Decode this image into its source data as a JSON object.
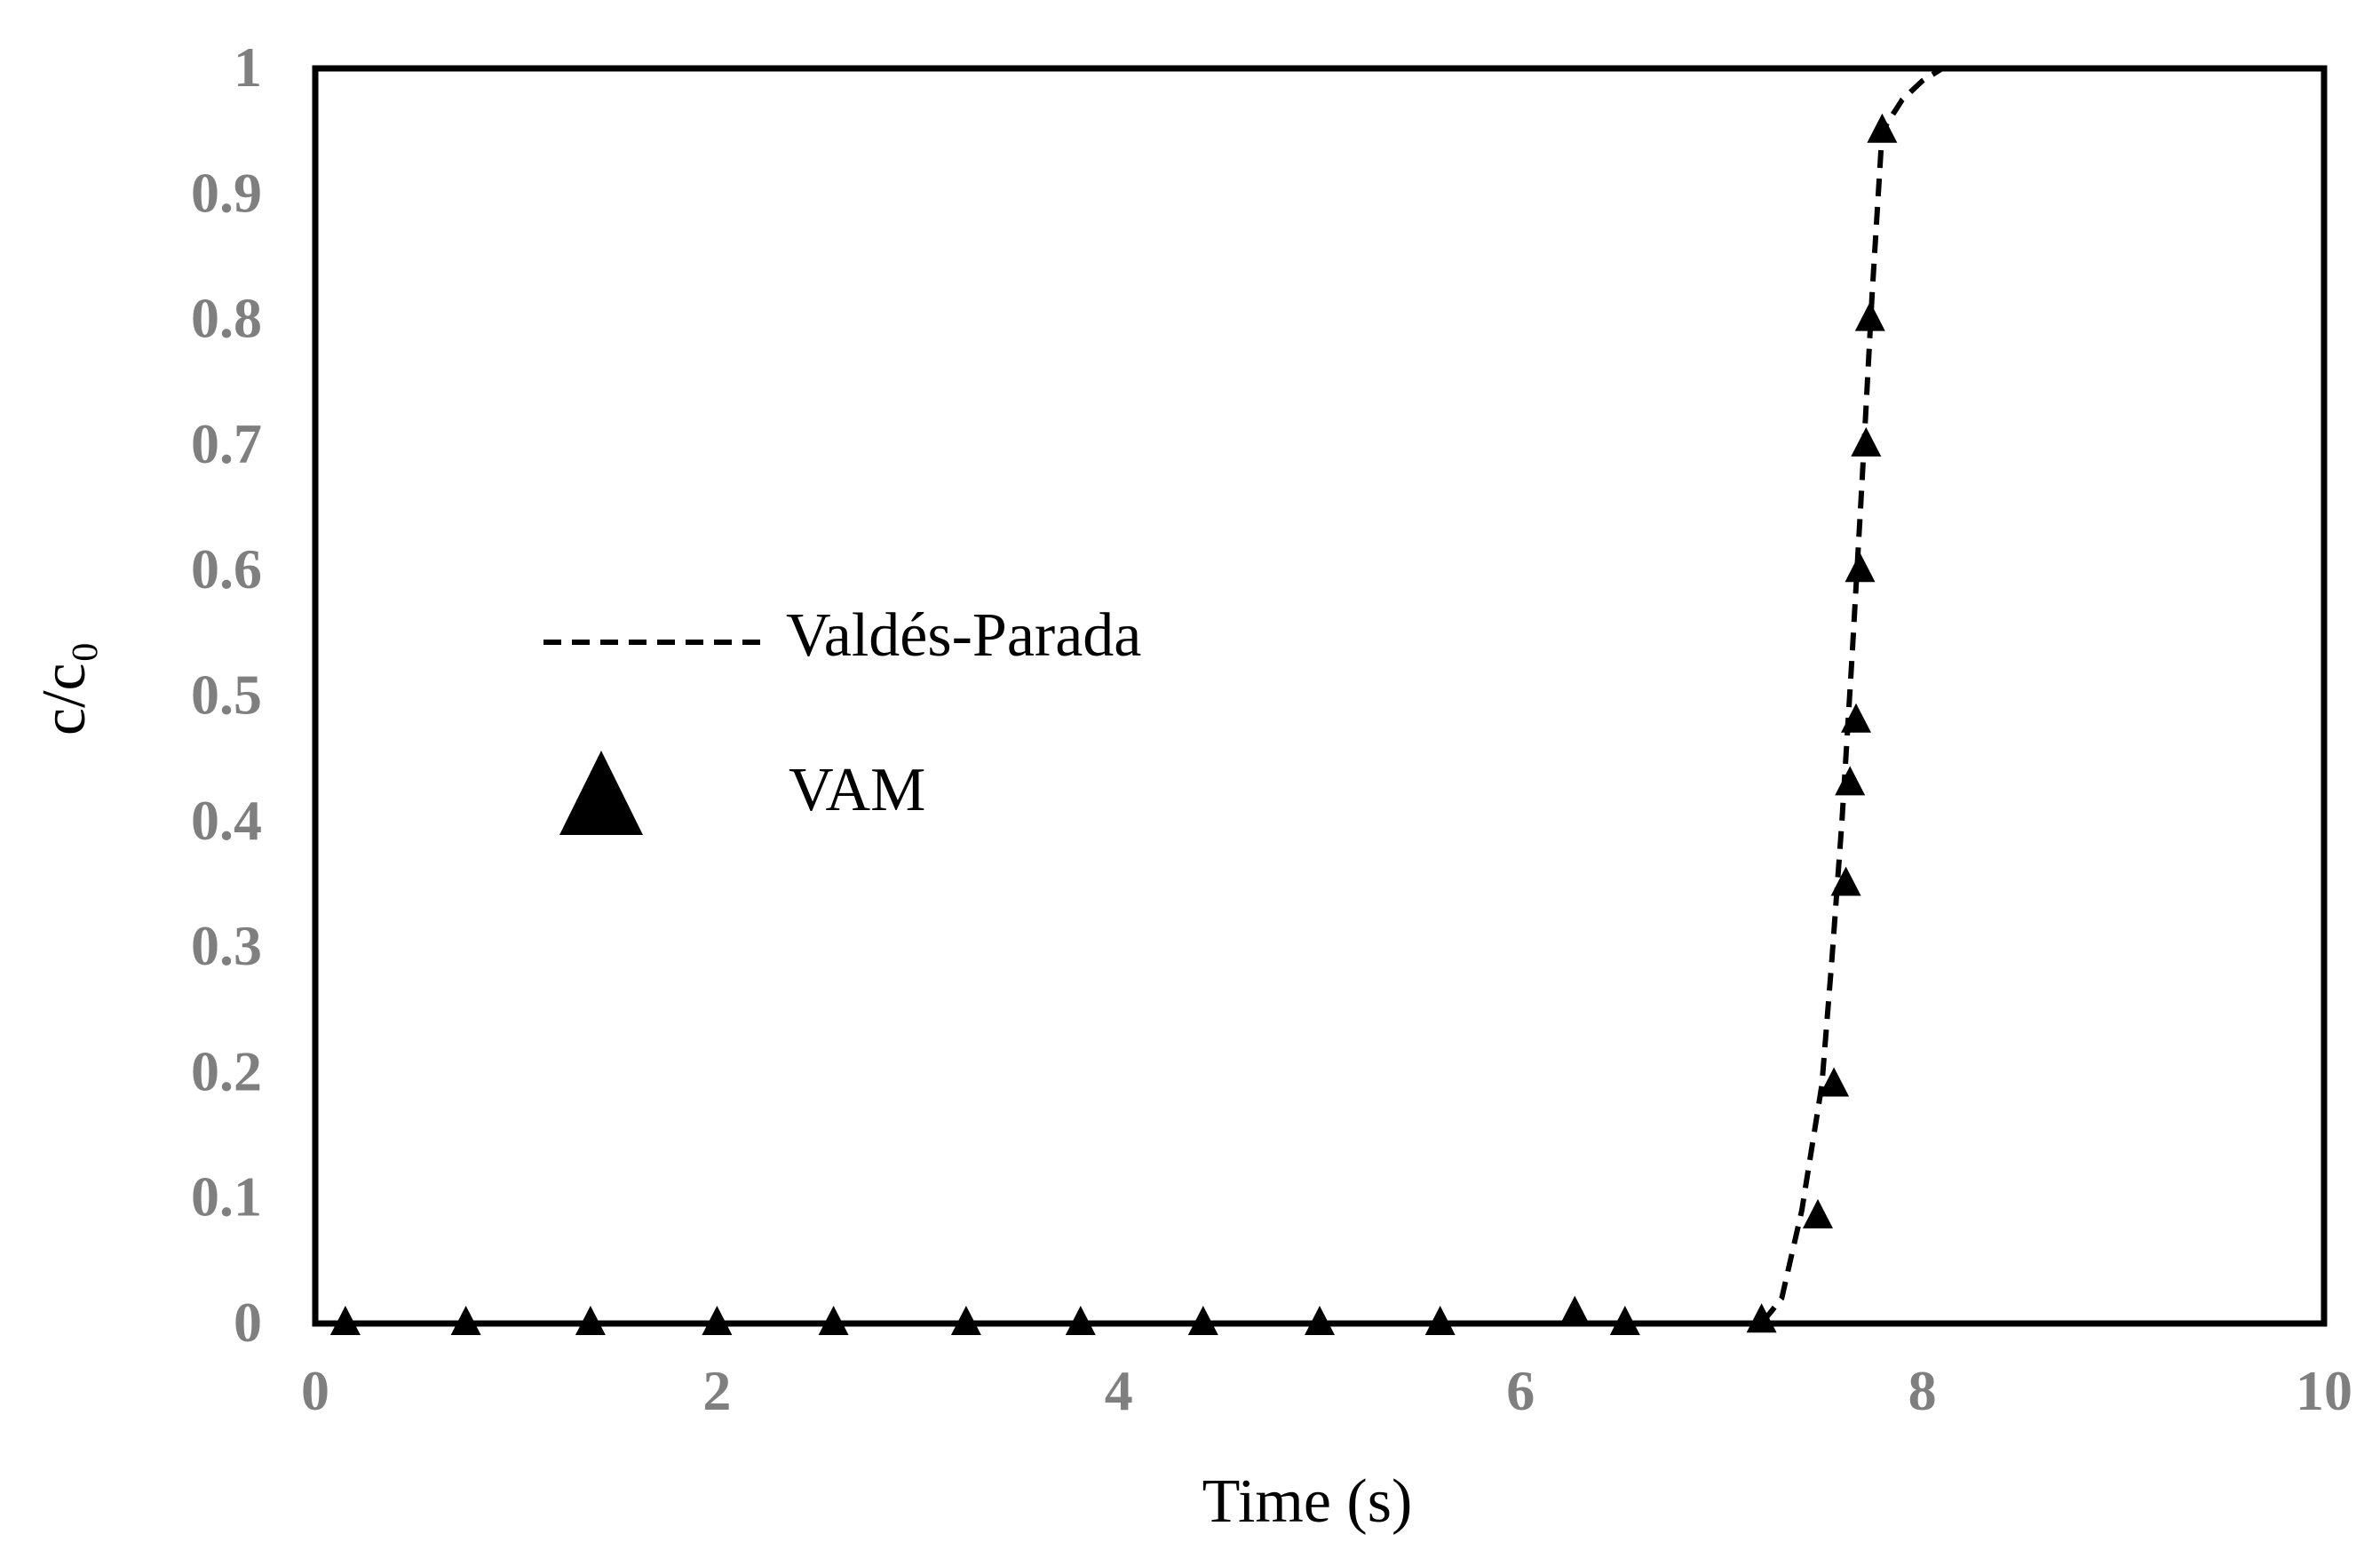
{
  "chart_data": {
    "type": "line",
    "xlabel": "Time (s)",
    "ylabel": "c/c₀",
    "xlim": [
      0,
      10
    ],
    "ylim": [
      0,
      1
    ],
    "x_ticks": [
      "0",
      "2",
      "4",
      "6",
      "8",
      "10"
    ],
    "y_ticks": [
      "0",
      "0.1",
      "0.2",
      "0.3",
      "0.4",
      "0.5",
      "0.6",
      "0.7",
      "0.8",
      "0.9",
      "1"
    ],
    "grid": false,
    "legend_position": "middle-left",
    "colors": {
      "tick_label": "#7f7f7f",
      "axis": "#000000",
      "series": "#000000"
    },
    "series": [
      {
        "name": "Valdés-Parada",
        "style": "dashed-line",
        "x": [
          0,
          1,
          2,
          3,
          4,
          5,
          6,
          6.8,
          7.2,
          7.3,
          7.4,
          7.5,
          7.55,
          7.6,
          7.65,
          7.7,
          7.75,
          7.8,
          7.9,
          8.0,
          8.1,
          8.3,
          8.6,
          9.0,
          9.5,
          10
        ],
        "y": [
          0,
          0,
          0,
          0,
          0,
          0,
          0,
          0,
          0,
          0.02,
          0.09,
          0.19,
          0.29,
          0.4,
          0.53,
          0.67,
          0.82,
          0.95,
          0.975,
          0.99,
          1.0,
          1.0,
          1.0,
          1.0,
          1.0,
          1.0
        ]
      },
      {
        "name": "VAM",
        "style": "triangle-markers",
        "x": [
          0.15,
          0.75,
          1.37,
          2.0,
          2.58,
          3.24,
          3.81,
          4.42,
          5.0,
          5.6,
          6.27,
          6.52,
          7.2,
          7.48,
          7.56,
          7.62,
          7.64,
          7.67,
          7.69,
          7.72,
          7.74,
          7.8
        ],
        "y": [
          0,
          0,
          0,
          0,
          0,
          0,
          0,
          0,
          0,
          0,
          0.008,
          0,
          0.002,
          0.085,
          0.19,
          0.35,
          0.43,
          0.48,
          0.6,
          0.7,
          0.8,
          0.95
        ]
      }
    ]
  },
  "legend": {
    "items": [
      {
        "label": "Valdés-Parada"
      },
      {
        "label": "VAM"
      }
    ]
  }
}
